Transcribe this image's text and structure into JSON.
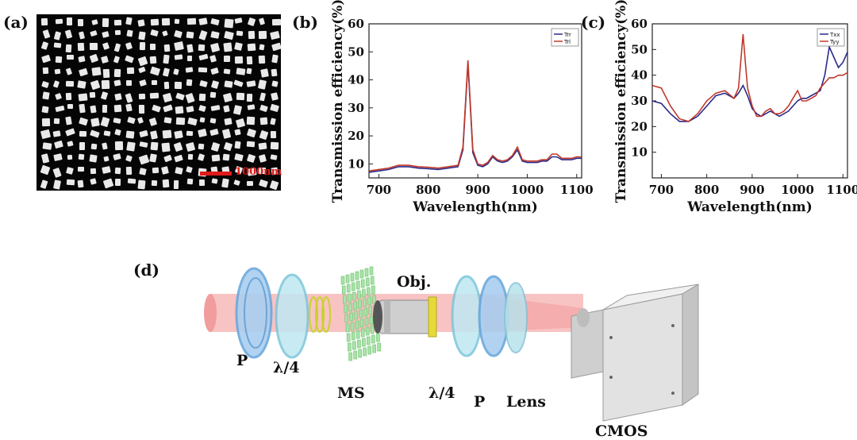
{
  "panels": {
    "a": "(a)",
    "b": "(b)",
    "c": "(c)",
    "d": "(d)"
  },
  "sem": {
    "scale_label": "1000nm",
    "scale_color": "#e01b1b"
  },
  "chart_data": [
    {
      "type": "line",
      "panel": "b",
      "xlabel": "Wavelength(nm)",
      "ylabel": "Transmission efficiency(%)",
      "xlim": [
        680,
        1110
      ],
      "ylim": [
        5,
        60
      ],
      "xticks": [
        700,
        800,
        900,
        1000,
        1100
      ],
      "yticks": [
        10,
        20,
        30,
        40,
        50,
        60
      ],
      "legend_position": "top-right",
      "x": [
        680,
        700,
        720,
        740,
        760,
        780,
        800,
        820,
        840,
        860,
        870,
        880,
        885,
        890,
        900,
        910,
        920,
        930,
        940,
        950,
        960,
        970,
        980,
        990,
        1000,
        1010,
        1020,
        1030,
        1040,
        1050,
        1060,
        1070,
        1080,
        1090,
        1100,
        1110
      ],
      "series": [
        {
          "name": "Trr",
          "color": "#2a2a8a",
          "values": [
            7,
            7.5,
            8,
            9,
            9,
            8.5,
            8.3,
            8,
            8.5,
            9,
            15,
            46,
            30,
            14,
            9.5,
            9,
            10,
            12.5,
            11,
            10.5,
            11,
            12.5,
            15,
            11,
            10.5,
            10.5,
            10.5,
            11,
            11,
            12.5,
            12.5,
            11.5,
            11.5,
            11.5,
            12,
            12
          ]
        },
        {
          "name": "Trl",
          "color": "#c0392b",
          "values": [
            7.5,
            8,
            8.5,
            9.5,
            9.5,
            9,
            8.8,
            8.5,
            9,
            9.5,
            16,
            47,
            31,
            15,
            10,
            9.5,
            10.5,
            13,
            11.5,
            11,
            11.5,
            13,
            16,
            11.5,
            11,
            11,
            11,
            11.5,
            11.5,
            13.5,
            13.5,
            12,
            12,
            12,
            12.5,
            12.5
          ]
        }
      ]
    },
    {
      "type": "line",
      "panel": "c",
      "xlabel": "Wavelength(nm)",
      "ylabel": "Transmission efficiency(%)",
      "xlim": [
        680,
        1110
      ],
      "ylim": [
        0,
        60
      ],
      "xticks": [
        700,
        800,
        900,
        1000,
        1100
      ],
      "yticks": [
        10,
        20,
        30,
        40,
        50,
        60
      ],
      "legend_position": "top-right",
      "x": [
        680,
        700,
        720,
        740,
        760,
        780,
        800,
        820,
        840,
        860,
        870,
        880,
        885,
        890,
        900,
        910,
        920,
        930,
        940,
        950,
        960,
        970,
        980,
        990,
        1000,
        1010,
        1020,
        1030,
        1040,
        1050,
        1060,
        1070,
        1080,
        1090,
        1100,
        1110
      ],
      "series": [
        {
          "name": "Txx",
          "color": "#2a2a8a",
          "values": [
            30,
            29,
            25,
            22,
            22,
            24,
            28,
            32,
            33,
            31,
            33,
            36,
            34,
            32,
            27,
            25,
            24,
            25,
            26,
            25,
            24,
            25,
            26,
            28,
            30,
            31,
            31,
            32,
            33,
            34,
            40,
            51,
            47,
            43,
            45,
            49
          ]
        },
        {
          "name": "Tyy",
          "color": "#c0392b",
          "values": [
            36,
            35,
            28,
            23,
            22,
            25,
            30,
            33,
            34,
            31,
            35,
            56,
            45,
            35,
            28,
            24,
            24,
            26,
            27,
            25,
            25,
            26,
            28,
            31,
            34,
            30,
            30,
            31,
            32,
            35,
            37,
            39,
            39,
            40,
            40,
            41
          ]
        }
      ]
    }
  ],
  "diagram": {
    "labels": {
      "p_left": "P",
      "qwp_left": "λ/4",
      "ms": "MS",
      "obj": "Obj.",
      "qwp_right": "λ/4",
      "p_right": "P",
      "lens": "Lens",
      "cmos": "CMOS"
    },
    "colors": {
      "beam": "#f7b6b6",
      "polarizer": "#9cc8ec",
      "waveplate": "#a6e0ec",
      "metasurface": "#9fdc9f",
      "camera": "#d6d6d6"
    }
  }
}
